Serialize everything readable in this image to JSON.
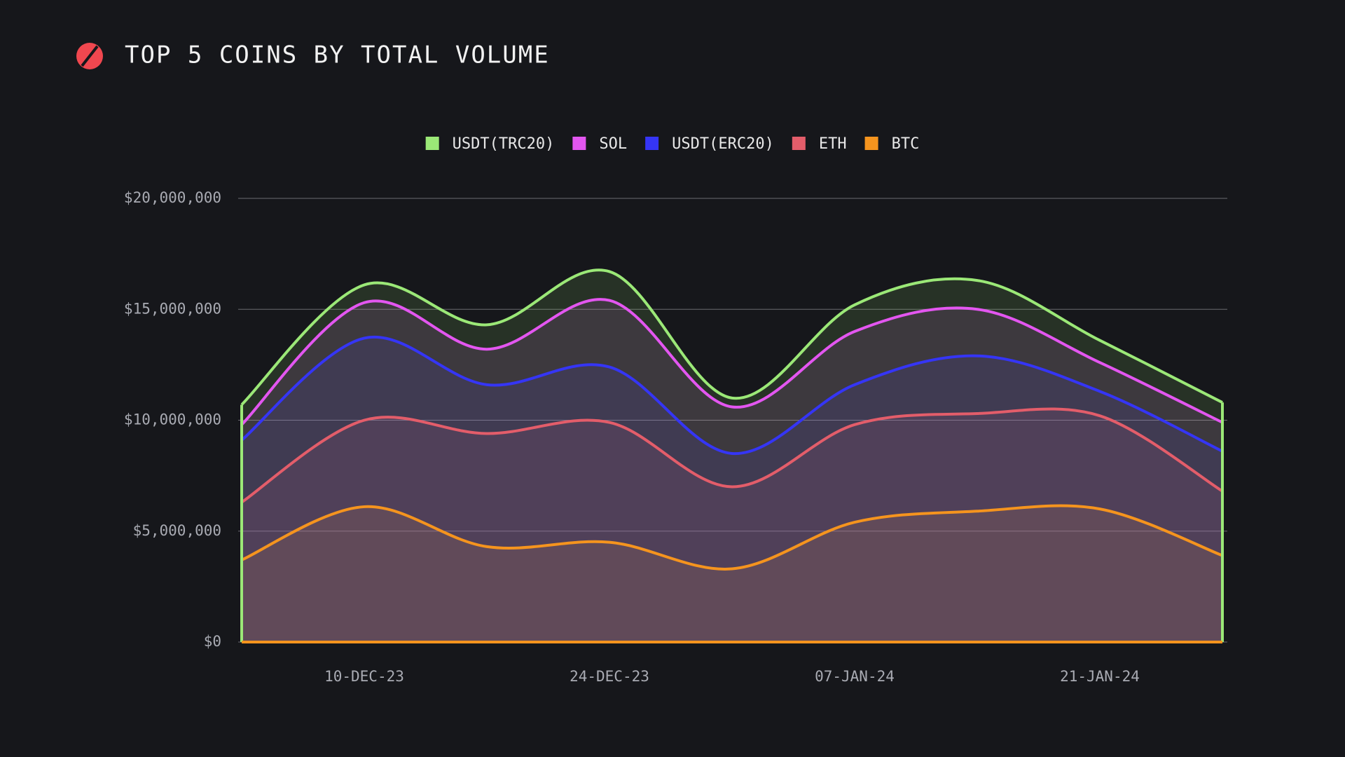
{
  "chart_data": {
    "type": "stacked-area",
    "title": "TOP 5 COINS BY TOTAL VOLUME",
    "categories": [
      null,
      "10-DEC-23",
      null,
      "24-DEC-23",
      null,
      "07-JAN-24",
      null,
      "21-JAN-24",
      null
    ],
    "series": [
      {
        "name": "USDT(TRC20)",
        "color": "#9be877",
        "values": [
          900000,
          800000,
          1100000,
          1300000,
          400000,
          1200000,
          1300000,
          1000000,
          900000
        ]
      },
      {
        "name": "SOL",
        "color": "#e356f0",
        "values": [
          700000,
          1600000,
          1600000,
          3000000,
          2100000,
          2400000,
          2100000,
          1300000,
          1300000
        ]
      },
      {
        "name": "USDT(ERC20)",
        "color": "#3535f5",
        "values": [
          2800000,
          3700000,
          2200000,
          2500000,
          1500000,
          1800000,
          2600000,
          1100000,
          1800000
        ]
      },
      {
        "name": "ETH",
        "color": "#e35d6a",
        "values": [
          2600000,
          3900000,
          5100000,
          5400000,
          3700000,
          4400000,
          4400000,
          4200000,
          2900000
        ]
      },
      {
        "name": "BTC",
        "color": "#f5941e",
        "values": [
          3700000,
          6100000,
          4300000,
          4500000,
          3300000,
          5400000,
          5900000,
          6000000,
          3900000
        ]
      }
    ],
    "ylim": [
      0,
      20000000
    ],
    "yticks": [
      {
        "value": 0,
        "label": "$0"
      },
      {
        "value": 5000000,
        "label": "$5,000,000"
      },
      {
        "value": 10000000,
        "label": "$10,000,000"
      },
      {
        "value": 15000000,
        "label": "$15,000,000"
      },
      {
        "value": 20000000,
        "label": "$20,000,000"
      }
    ],
    "grid": true
  }
}
